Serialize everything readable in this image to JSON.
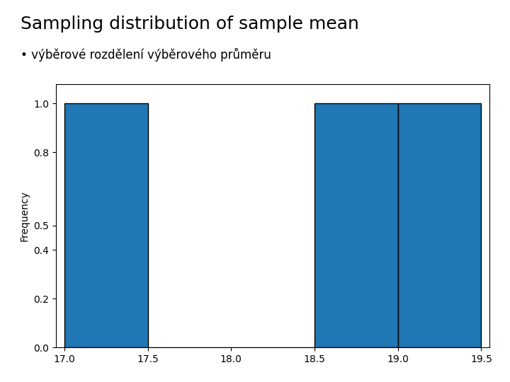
{
  "chart_data": {
    "type": "histogram",
    "title": "Sampling distribution of sample mean",
    "subtitle": "• výběrové rozdělení výběrového průměru",
    "y_label": "Frequency",
    "bins": [
      17.0,
      17.5,
      18.0,
      18.5,
      19.0,
      19.5
    ],
    "counts": [
      1.0,
      0.0,
      0.0,
      1.0,
      1.0
    ],
    "xlim": [
      16.95,
      19.55
    ],
    "ylim": [
      0.0,
      1.08
    ],
    "xticks": [
      17.0,
      17.5,
      18.0,
      18.5,
      19.0,
      19.5
    ],
    "yticks": [
      0.0,
      0.2,
      0.4,
      0.5,
      0.8,
      1.0
    ],
    "grid": false
  }
}
